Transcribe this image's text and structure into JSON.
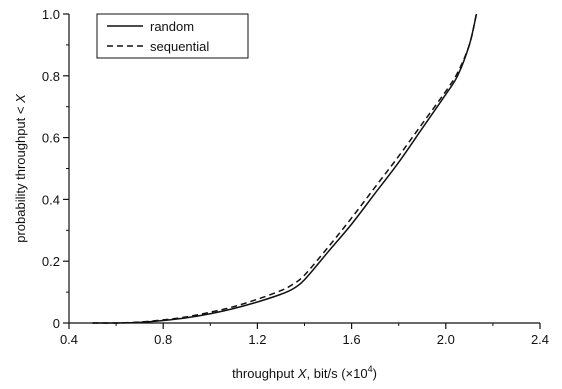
{
  "chart_data": {
    "type": "line",
    "title": "",
    "xlabel": {
      "prefix": "throughput ",
      "variable": "X",
      "middle": ", bit/s (×10",
      "exponent": "4",
      "suffix": ")"
    },
    "ylabel": {
      "prefix": "probability throughput < ",
      "variable": "X"
    },
    "xlim": [
      0.4,
      2.4
    ],
    "ylim": [
      0,
      1.0
    ],
    "x_ticks": [
      0.4,
      0.8,
      1.2,
      1.6,
      2.0,
      2.4
    ],
    "x_tick_labels": [
      "0.4",
      "0.8",
      "1.2",
      "1.6",
      "2.0",
      "2.4"
    ],
    "y_ticks": [
      0,
      0.2,
      0.4,
      0.6,
      0.8,
      1.0
    ],
    "y_tick_labels": [
      "0",
      "0.2",
      "0.4",
      "0.6",
      "0.8",
      "1.0"
    ],
    "grid": false,
    "legend_position": "top-left",
    "colors": {
      "line": "#111111",
      "axis": "#111111"
    },
    "series": [
      {
        "name": "random",
        "line_style": "solid",
        "x": [
          0.5,
          0.6,
          0.7,
          0.8,
          0.9,
          1.0,
          1.1,
          1.2,
          1.3,
          1.35,
          1.4,
          1.5,
          1.6,
          1.7,
          1.8,
          1.9,
          2.0,
          2.05,
          2.1,
          2.13
        ],
        "y": [
          0.0,
          0.0,
          0.002,
          0.008,
          0.017,
          0.03,
          0.047,
          0.068,
          0.093,
          0.11,
          0.14,
          0.23,
          0.32,
          0.42,
          0.52,
          0.63,
          0.74,
          0.8,
          0.9,
          1.0
        ]
      },
      {
        "name": "sequential",
        "line_style": "dashed",
        "x": [
          0.5,
          0.6,
          0.7,
          0.8,
          0.9,
          1.0,
          1.1,
          1.2,
          1.3,
          1.35,
          1.4,
          1.5,
          1.6,
          1.7,
          1.8,
          1.9,
          2.0,
          2.05,
          2.1,
          2.13
        ],
        "y": [
          0.0,
          0.0,
          0.003,
          0.01,
          0.02,
          0.035,
          0.053,
          0.077,
          0.105,
          0.125,
          0.155,
          0.245,
          0.34,
          0.44,
          0.54,
          0.645,
          0.75,
          0.81,
          0.9,
          1.0
        ]
      }
    ]
  }
}
